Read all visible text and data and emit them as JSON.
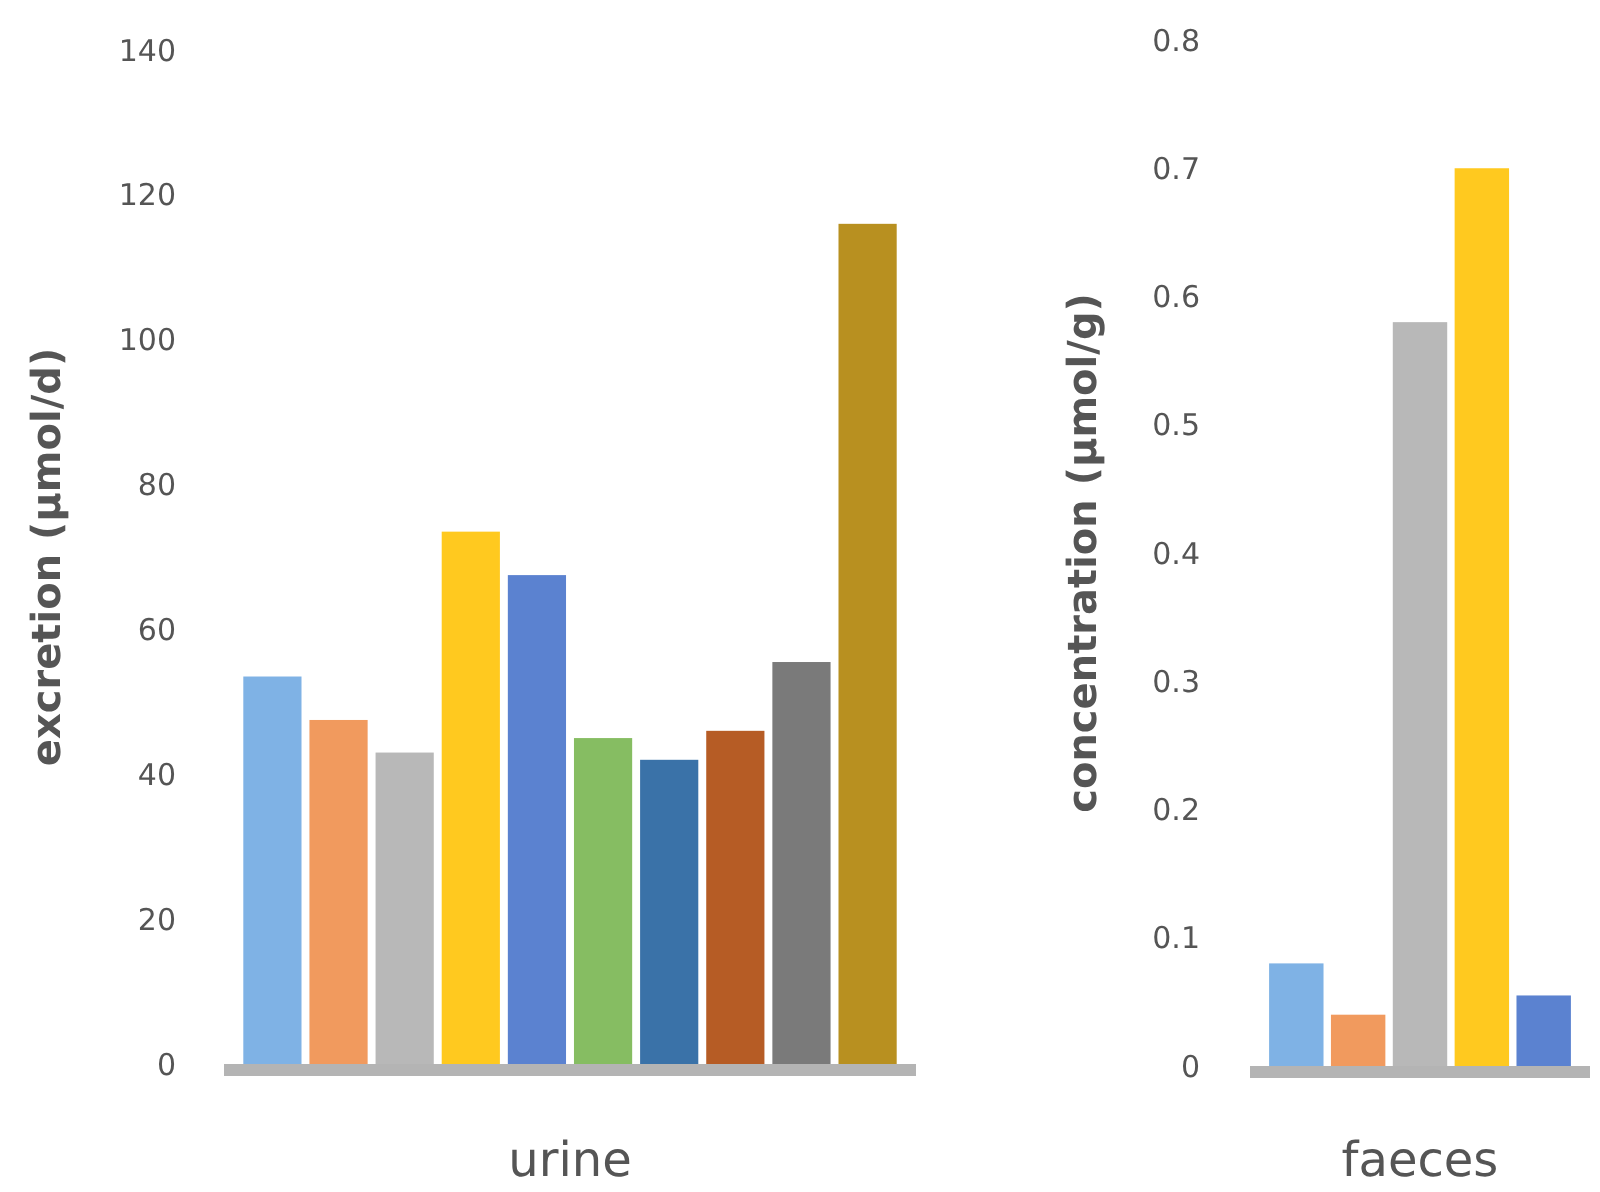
{
  "chart_data": [
    {
      "type": "bar",
      "xlabel": "urine",
      "ylabel": "excretion (µmol/d)",
      "categories": [
        null,
        null,
        null,
        null,
        null,
        null,
        null,
        null,
        null,
        null
      ],
      "values": [
        53.5,
        47.5,
        43,
        73.5,
        67.5,
        45,
        42,
        46,
        55.5,
        116
      ],
      "colors": [
        "#7fb2e5",
        "#f19a5e",
        "#b8b8b8",
        "#ffc91f",
        "#5b82d0",
        "#86bd62",
        "#3a72a8",
        "#b65c25",
        "#7a7a7a",
        "#b89020"
      ],
      "ylim": [
        0,
        140
      ],
      "yticks": [
        0,
        20,
        40,
        60,
        80,
        100,
        120,
        140
      ]
    },
    {
      "type": "bar",
      "xlabel": "faeces",
      "ylabel": "concentration (µmol/g)",
      "categories": [
        null,
        null,
        null,
        null,
        null
      ],
      "values": [
        0.08,
        0.04,
        0.58,
        0.7,
        0.055
      ],
      "colors": [
        "#7fb2e5",
        "#f19a5e",
        "#b8b8b8",
        "#ffc91f",
        "#5b82d0"
      ],
      "ylim": [
        0,
        0.8
      ],
      "yticks": [
        0,
        0.1,
        0.2,
        0.3,
        0.4,
        0.5,
        0.6,
        0.7,
        0.8
      ]
    }
  ]
}
